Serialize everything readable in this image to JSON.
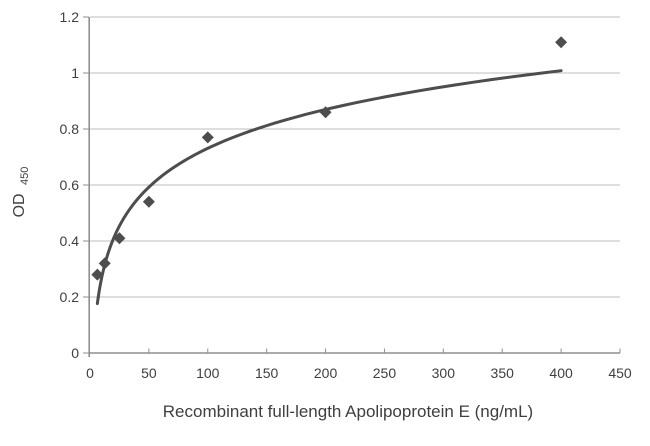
{
  "chart_data": {
    "type": "scatter",
    "title": "",
    "xlabel": "Recombinant full-length Apolipoprotein E (ng/mL)",
    "ylabel_main": "OD",
    "ylabel_sub": "450",
    "xlim": [
      0,
      450
    ],
    "ylim": [
      0,
      1.2
    ],
    "x_ticks": [
      0,
      50,
      100,
      150,
      200,
      250,
      300,
      350,
      400,
      450
    ],
    "y_ticks": [
      0,
      0.2,
      0.4,
      0.6,
      0.8,
      1,
      1.2
    ],
    "y_tick_labels": [
      "0",
      "0.2",
      "0.4",
      "0.6",
      "0.8",
      "1",
      "1.2"
    ],
    "grid": "horizontal-only",
    "legend": "none",
    "marker": "diamond",
    "points": [
      {
        "x": 6.25,
        "y": 0.28
      },
      {
        "x": 12.5,
        "y": 0.32
      },
      {
        "x": 25,
        "y": 0.41
      },
      {
        "x": 50,
        "y": 0.54
      },
      {
        "x": 100,
        "y": 0.77
      },
      {
        "x": 200,
        "y": 0.86
      },
      {
        "x": 400,
        "y": 1.11
      }
    ],
    "trendline": {
      "type": "logarithmic",
      "a": 0.2,
      "b": -0.19,
      "x_start": 6.25,
      "x_end": 400
    },
    "colors": {
      "series": "#4d4d4d",
      "gridline": "#bdbdbd",
      "axis": "#8f8f8f",
      "text": "#3f3f3f"
    }
  }
}
